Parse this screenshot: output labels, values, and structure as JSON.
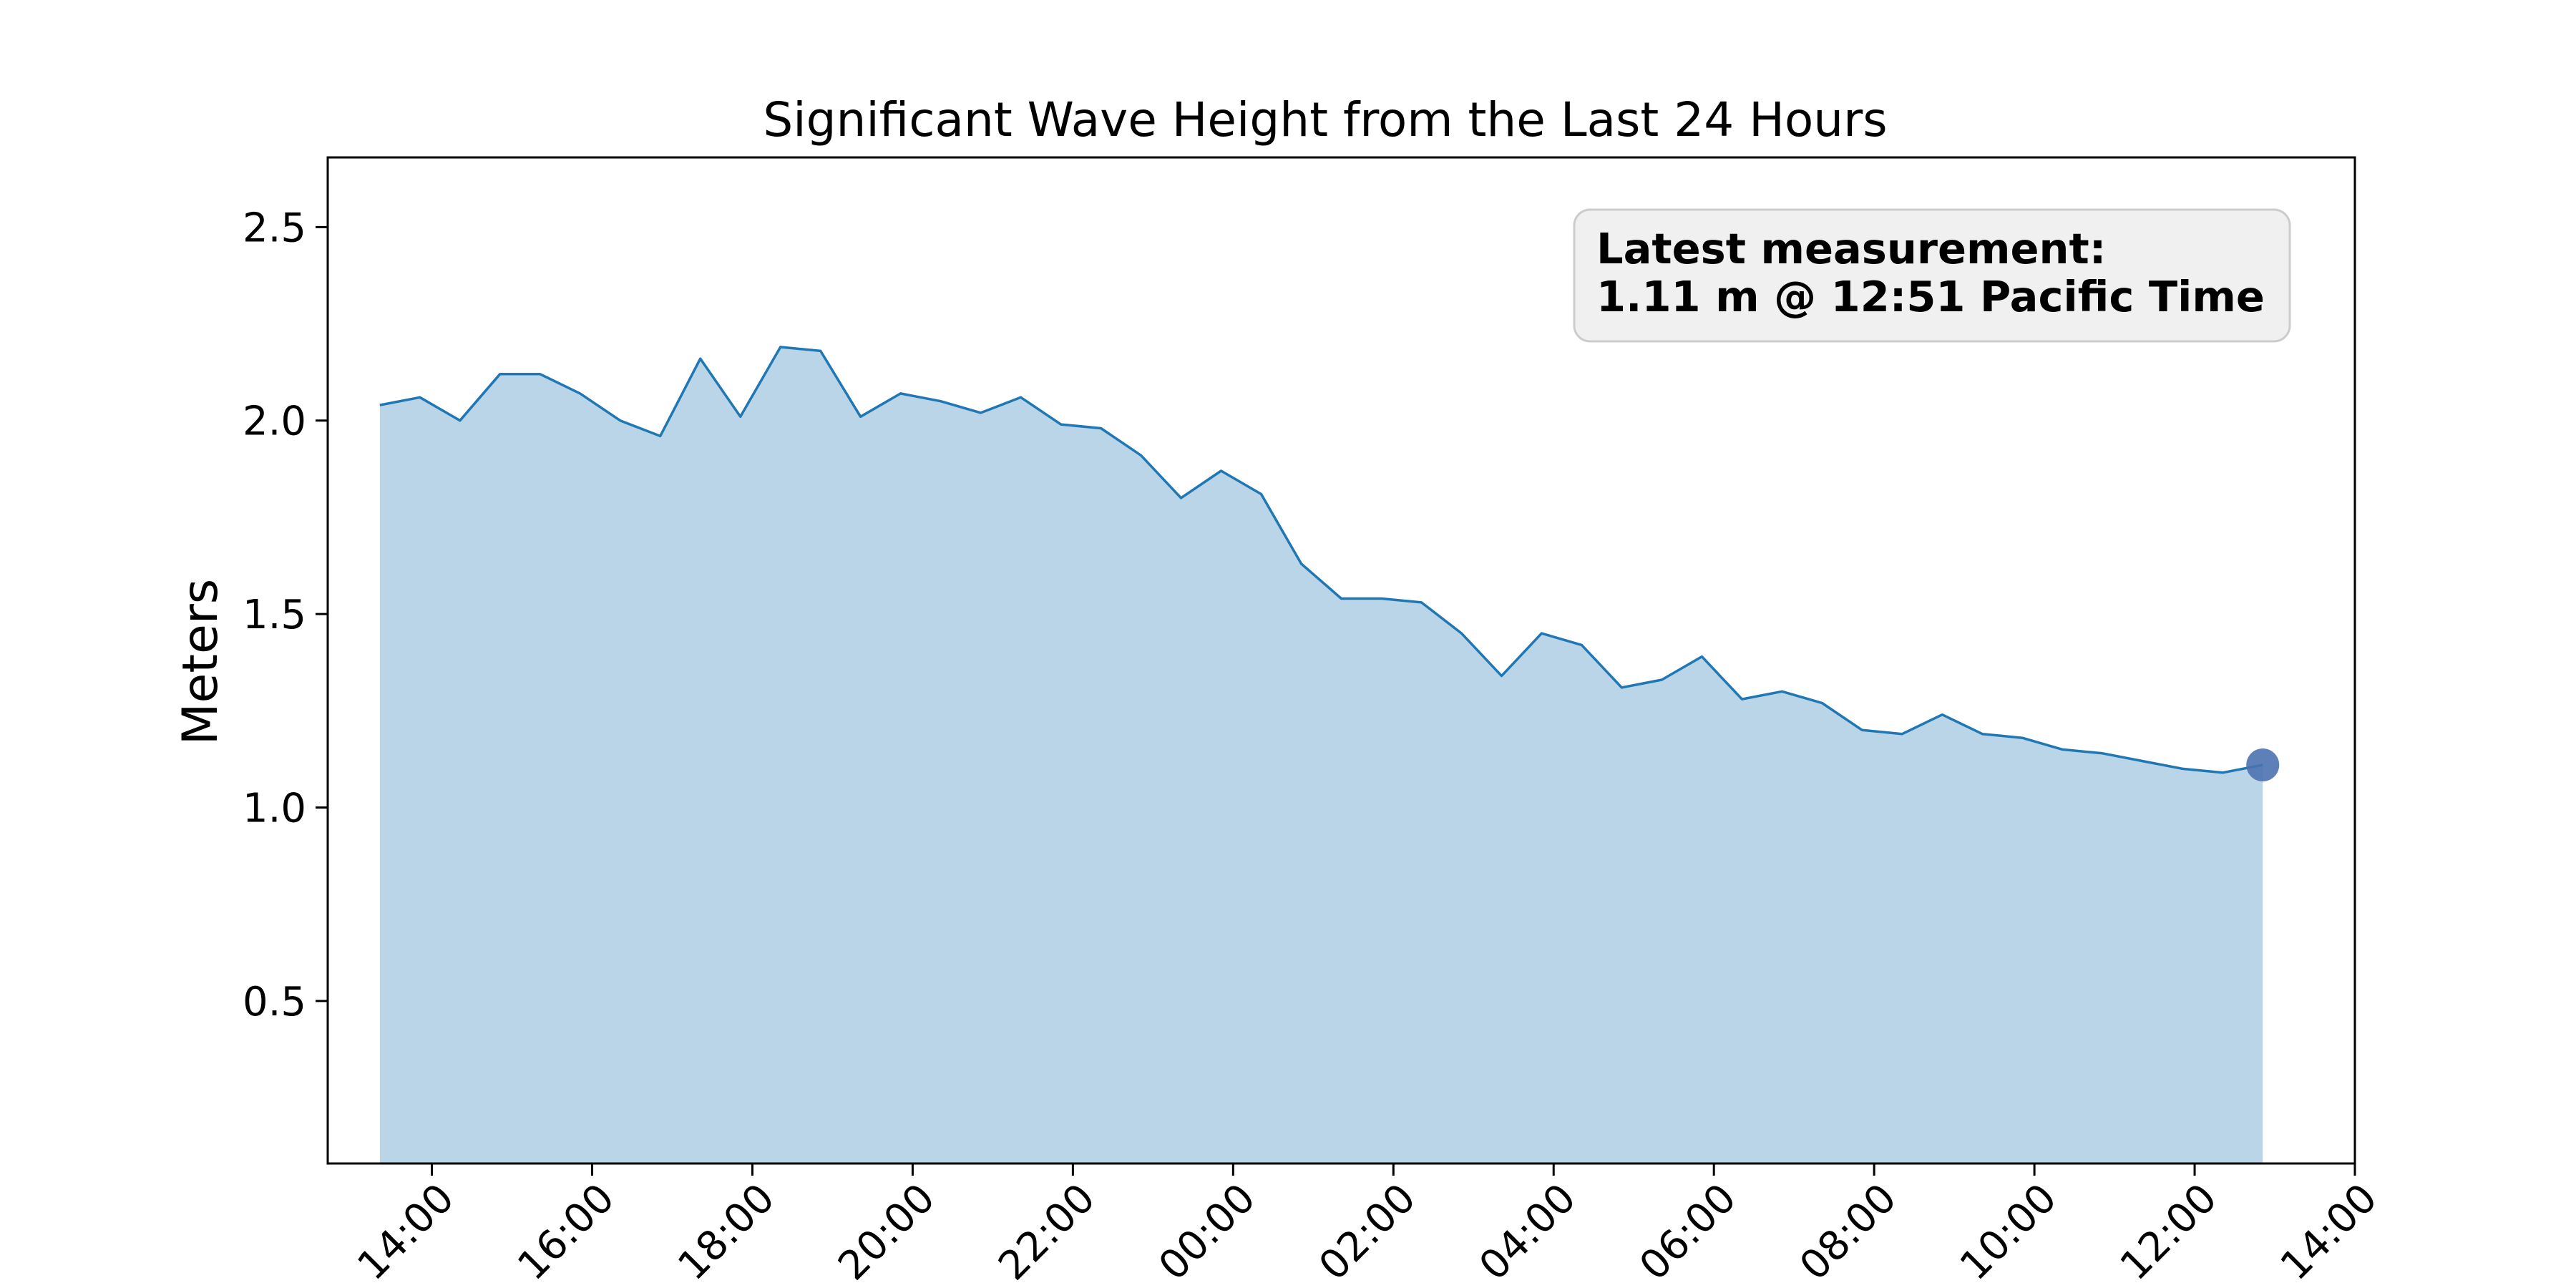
{
  "chart_data": {
    "type": "area",
    "title": "Significant Wave Height from the Last 24 Hours",
    "xlabel": "",
    "ylabel": "Meters",
    "x_kind": "time",
    "x_range": [
      "12:42",
      "14:00"
    ],
    "xlim": [
      "12:42",
      "14:00"
    ],
    "ylim": [
      0.08,
      2.68
    ],
    "grid": false,
    "x_ticks": [
      "14:00",
      "16:00",
      "18:00",
      "20:00",
      "22:00",
      "00:00",
      "02:00",
      "04:00",
      "06:00",
      "08:00",
      "10:00",
      "12:00",
      "14:00"
    ],
    "y_ticks": [
      "0.5",
      "1.0",
      "1.5",
      "2.0",
      "2.5"
    ],
    "y_tick_values": [
      0.5,
      1.0,
      1.5,
      2.0,
      2.5
    ],
    "series": [
      {
        "x": [
          "13:21",
          "13:51",
          "14:21",
          "14:51",
          "15:21",
          "15:51",
          "16:21",
          "16:51",
          "17:21",
          "17:51",
          "18:21",
          "18:51",
          "19:21",
          "19:51",
          "20:21",
          "20:51",
          "21:21",
          "21:51",
          "22:21",
          "22:51",
          "23:21",
          "23:51",
          "00:21",
          "00:51",
          "01:21",
          "01:51",
          "02:21",
          "02:51",
          "03:21",
          "03:51",
          "04:21",
          "04:51",
          "05:21",
          "05:51",
          "06:21",
          "06:51",
          "07:21",
          "07:51",
          "08:21",
          "08:51",
          "09:21",
          "09:51",
          "10:21",
          "10:51",
          "11:21",
          "11:51",
          "12:21",
          "12:51"
        ],
        "values": [
          2.04,
          2.06,
          2.0,
          2.12,
          2.12,
          2.07,
          2.0,
          1.96,
          2.16,
          2.01,
          2.19,
          2.18,
          2.01,
          2.07,
          2.05,
          2.02,
          2.06,
          1.99,
          1.98,
          1.91,
          1.8,
          1.87,
          1.81,
          1.63,
          1.54,
          1.54,
          1.53,
          1.45,
          1.34,
          1.45,
          1.42,
          1.31,
          1.33,
          1.39,
          1.28,
          1.3,
          1.27,
          1.2,
          1.19,
          1.24,
          1.19,
          1.18,
          1.15,
          1.14,
          1.12,
          1.1,
          1.09,
          1.11
        ]
      }
    ],
    "latest_point": {
      "x": "12:51",
      "y": 1.11
    },
    "annotation": {
      "line1": "Latest measurement:",
      "line2": "1.11 m @ 12:51 Pacific Time"
    },
    "colors": {
      "line": "#1f77b4",
      "fill": "#bad4e8",
      "marker": "#4c72b0",
      "annotation_bg": "#f0f0f0",
      "annotation_border": "#cccccc"
    }
  }
}
